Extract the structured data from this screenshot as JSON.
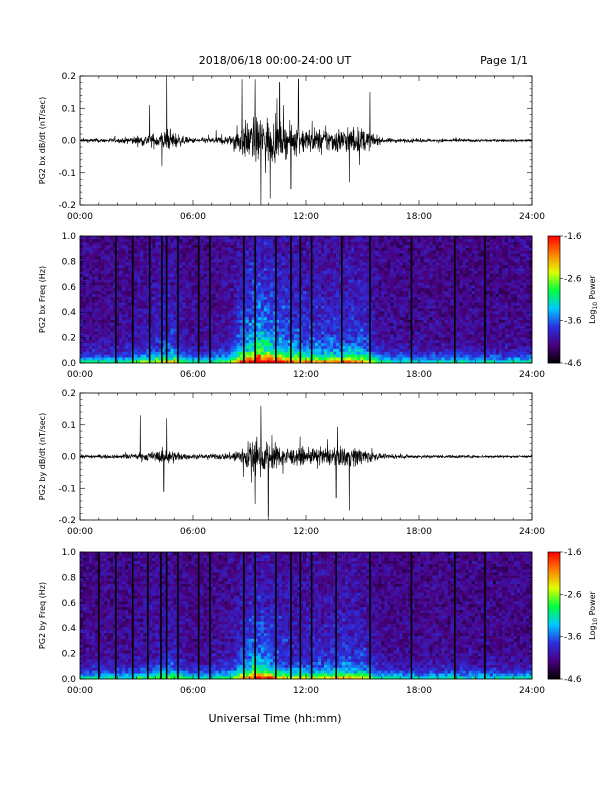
{
  "header": {
    "date_range": "2018/06/18  00:00-24:00 UT",
    "page": "Page 1/1"
  },
  "x_axis": {
    "title": "Universal Time (hh:mm)",
    "tick_labels": [
      "00:00",
      "06:00",
      "12:00",
      "18:00",
      "24:00"
    ]
  },
  "colors": {
    "waveform": "#000000",
    "colormap": [
      "#000000",
      "#4a0080",
      "#2a30e0",
      "#00c8ff",
      "#00ff40",
      "#e0ff00",
      "#ff8000",
      "#ff0000"
    ]
  },
  "chart_data": [
    {
      "type": "line",
      "ylabel": "PG2 bx dB/dt (nT/sec)",
      "xlim": [
        0,
        24
      ],
      "ylim": [
        -0.2,
        0.2
      ],
      "ytick_labels": [
        "0.2",
        "0.1",
        "0.0",
        "-0.1",
        "-0.2"
      ],
      "activity_envelope": {
        "hours": [
          0,
          2,
          3,
          4,
          4.5,
          5,
          5.5,
          6,
          7,
          8,
          8.5,
          9,
          9.5,
          10,
          10.5,
          11,
          12,
          13,
          14,
          15,
          16,
          17,
          18,
          20,
          22,
          24
        ],
        "amplitude": [
          0.008,
          0.008,
          0.018,
          0.028,
          0.04,
          0.035,
          0.015,
          0.01,
          0.012,
          0.02,
          0.06,
          0.08,
          0.1,
          0.09,
          0.07,
          0.06,
          0.05,
          0.045,
          0.05,
          0.05,
          0.01,
          0.008,
          0.006,
          0.006,
          0.005,
          0.005
        ]
      },
      "spikes": [
        {
          "t": 3.7,
          "v": 0.11
        },
        {
          "t": 4.6,
          "v": 0.2
        },
        {
          "t": 4.35,
          "v": -0.08
        },
        {
          "t": 8.6,
          "v": 0.19
        },
        {
          "t": 9.3,
          "v": 0.19
        },
        {
          "t": 9.6,
          "v": -0.21
        },
        {
          "t": 10.1,
          "v": -0.18
        },
        {
          "t": 10.6,
          "v": 0.18
        },
        {
          "t": 11.6,
          "v": 0.19
        },
        {
          "t": 11.2,
          "v": -0.15
        },
        {
          "t": 14.3,
          "v": -0.13
        },
        {
          "t": 15.4,
          "v": 0.15
        }
      ]
    },
    {
      "type": "heatmap",
      "ylabel": "PG2 bx Freq (Hz)",
      "xlim": [
        0,
        24
      ],
      "ylim": [
        0,
        1
      ],
      "ytick_labels": [
        "1.0",
        "0.8",
        "0.6",
        "0.4",
        "0.2",
        "0.0"
      ],
      "colorbar": {
        "label": "Log10 Power",
        "range": [
          -4.6,
          -1.6
        ],
        "tick_labels": [
          "-1.6",
          "-2.6",
          "-3.6",
          "-4.6"
        ]
      },
      "gap_lines": [
        1.9,
        2.8,
        3.7,
        4.35,
        4.6,
        5.2,
        6.3,
        6.9,
        8.7,
        9.3,
        10.4,
        11.2,
        11.7,
        12.3,
        13.9,
        15.4,
        17.6,
        19.9,
        21.5
      ]
    },
    {
      "type": "line",
      "ylabel": "PG2 by dB/dt (nT/sec)",
      "xlim": [
        0,
        24
      ],
      "ylim": [
        -0.2,
        0.2
      ],
      "ytick_labels": [
        "0.2",
        "0.1",
        "0.0",
        "-0.1",
        "-0.2"
      ],
      "activity_envelope": {
        "hours": [
          0,
          2,
          3,
          4,
          4.5,
          5,
          5.5,
          6,
          7,
          8,
          8.5,
          9,
          9.5,
          10,
          10.5,
          11,
          12,
          13,
          14,
          15,
          16,
          17,
          18,
          20,
          22,
          24
        ],
        "amplitude": [
          0.007,
          0.007,
          0.012,
          0.02,
          0.03,
          0.025,
          0.012,
          0.008,
          0.01,
          0.015,
          0.04,
          0.06,
          0.07,
          0.06,
          0.045,
          0.035,
          0.03,
          0.035,
          0.04,
          0.035,
          0.008,
          0.007,
          0.006,
          0.006,
          0.005,
          0.005
        ]
      },
      "spikes": [
        {
          "t": 3.2,
          "v": 0.13
        },
        {
          "t": 4.6,
          "v": 0.12
        },
        {
          "t": 4.45,
          "v": -0.11
        },
        {
          "t": 9.6,
          "v": 0.16
        },
        {
          "t": 10.0,
          "v": -0.19
        },
        {
          "t": 9.3,
          "v": -0.15
        },
        {
          "t": 14.3,
          "v": -0.17
        },
        {
          "t": 13.6,
          "v": -0.13
        }
      ]
    },
    {
      "type": "heatmap",
      "ylabel": "PG2 by Freq (Hz)",
      "xlim": [
        0,
        24
      ],
      "ylim": [
        0,
        1
      ],
      "ytick_labels": [
        "1.0",
        "0.8",
        "0.6",
        "0.4",
        "0.2",
        "0.0"
      ],
      "colorbar": {
        "label": "Log10 Power",
        "range": [
          -4.6,
          -1.6
        ],
        "tick_labels": [
          "-1.6",
          "-2.6",
          "-3.6",
          "-4.6"
        ]
      },
      "gap_lines": [
        1.0,
        1.9,
        2.8,
        3.6,
        4.3,
        4.6,
        5.2,
        6.3,
        6.9,
        8.7,
        9.3,
        10.4,
        11.2,
        11.7,
        12.3,
        13.6,
        15.4,
        17.6,
        19.9,
        21.5
      ]
    }
  ]
}
